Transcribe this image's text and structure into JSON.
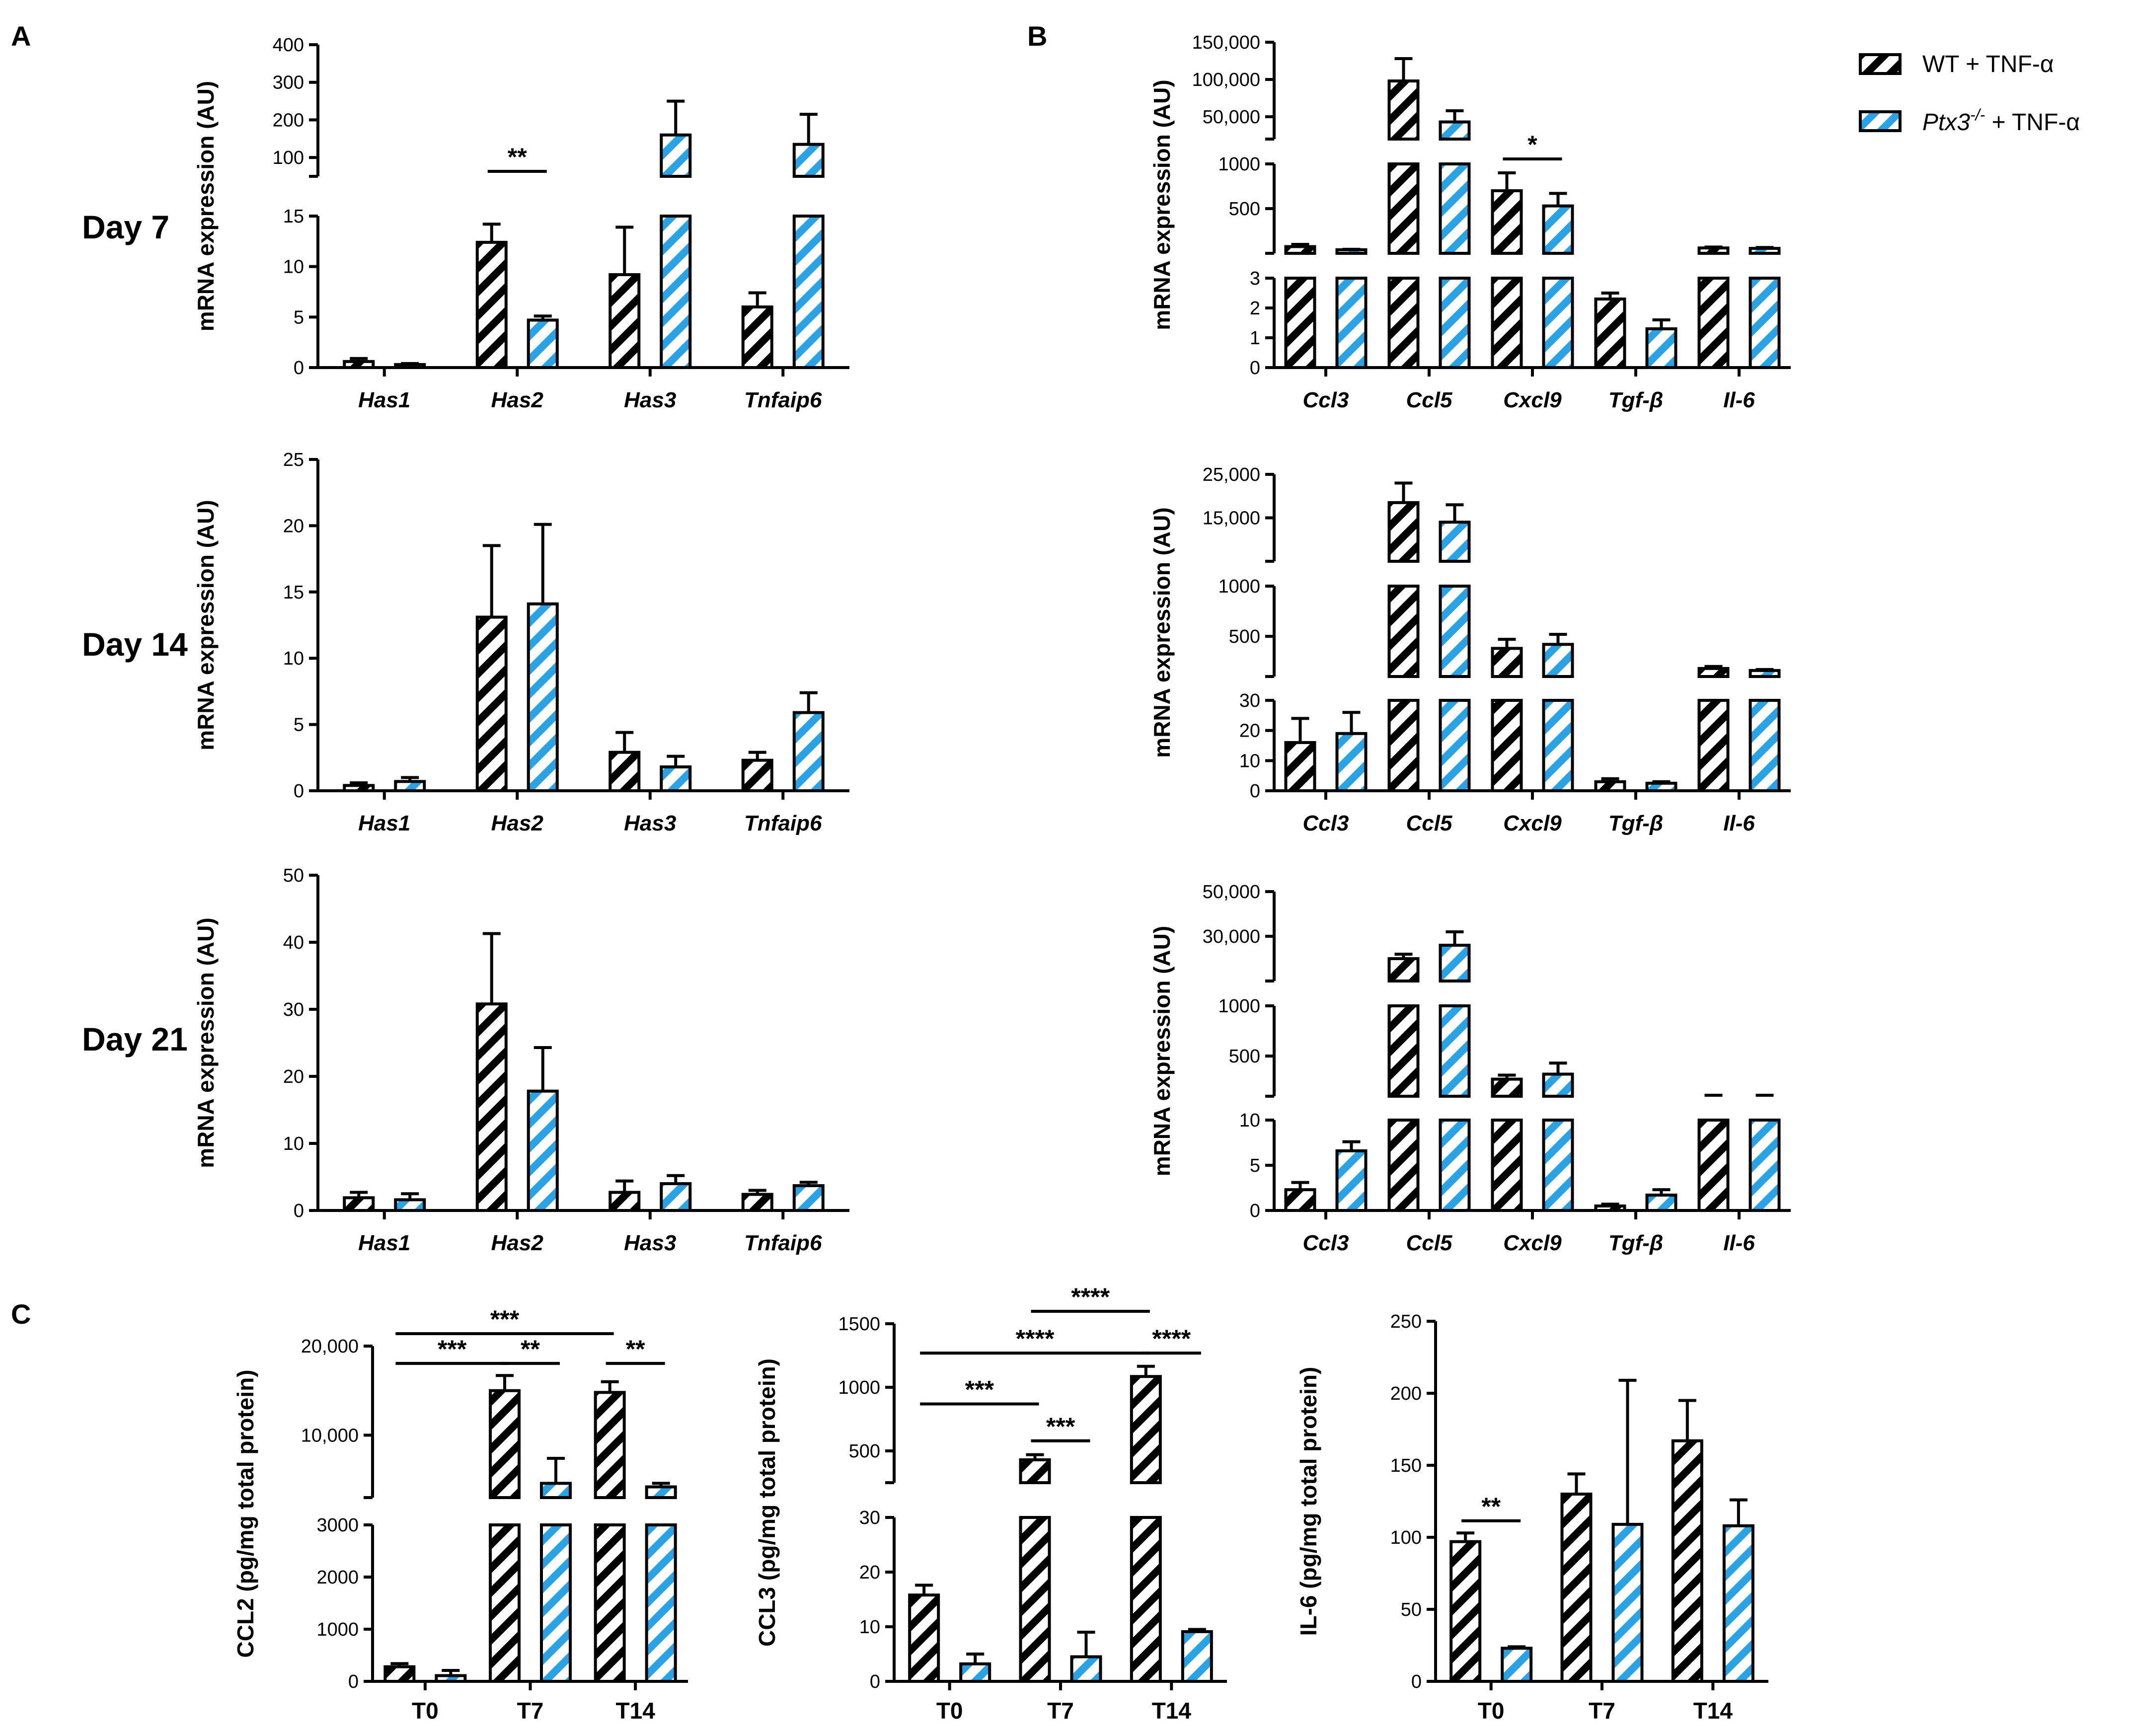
{
  "figure": {
    "panel_labels": [
      "A",
      "B",
      "C"
    ],
    "day_labels": [
      "Day 7",
      "Day 14",
      "Day 21"
    ],
    "legend": [
      {
        "label": "WT + TNF-α",
        "series": "WT"
      },
      {
        "label_italic": "Ptx3",
        "label_sup": "-/-",
        "label_rest": " + TNF-α",
        "series": "Ptx3"
      }
    ],
    "colors": {
      "wt": "#000000",
      "ptx3": "#29a3e6"
    }
  },
  "chart_data": [
    {
      "id": "A-day7",
      "type": "bar",
      "panel": "A",
      "day": "Day 7",
      "ylabel": "mRNA expression (AU)",
      "categories": [
        "Has1",
        "Has2",
        "Has3",
        "Tnfaip6"
      ],
      "italic_categories": true,
      "segments": [
        {
          "range": [
            0,
            15
          ],
          "ticks": [
            0,
            5,
            10,
            15
          ],
          "tick_labels": [
            "0",
            "5",
            "10",
            "15"
          ]
        },
        {
          "range": [
            50,
            400
          ],
          "ticks": [
            100,
            200,
            300,
            400
          ],
          "tick_labels": [
            "100",
            "200",
            "300",
            "400"
          ]
        }
      ],
      "series": [
        {
          "name": "WT + TNF-α",
          "values": [
            0.6,
            12.4,
            9.2,
            6.0
          ],
          "errors": [
            0.3,
            1.8,
            4.7,
            1.4
          ]
        },
        {
          "name": "Ptx3-/- + TNF-α",
          "values": [
            0.3,
            4.7,
            160,
            135
          ],
          "errors": [
            0.1,
            0.4,
            90,
            80
          ]
        }
      ],
      "annotations": [
        {
          "text": "**",
          "from": [
            1,
            0
          ],
          "to": [
            1,
            1
          ],
          "level": 17
        }
      ]
    },
    {
      "id": "B-day7",
      "type": "bar",
      "panel": "B",
      "day": "Day 7",
      "ylabel": "mRNA expression (AU)",
      "categories": [
        "Ccl3",
        "Ccl5",
        "Cxcl9",
        "Tgf-β",
        "Il-6"
      ],
      "italic_categories": true,
      "segments": [
        {
          "range": [
            0,
            3
          ],
          "ticks": [
            0,
            1,
            2,
            3
          ],
          "tick_labels": [
            "0",
            "1",
            "2",
            "3"
          ]
        },
        {
          "range": [
            0,
            1000
          ],
          "ticks": [
            500,
            1000
          ],
          "tick_labels": [
            "500",
            "1000"
          ]
        },
        {
          "range": [
            20000,
            150000
          ],
          "ticks": [
            50000,
            100000,
            150000
          ],
          "tick_labels": [
            "50,000",
            "100,000",
            "150,000"
          ]
        }
      ],
      "series": [
        {
          "name": "WT + TNF-α",
          "values": [
            75,
            98000,
            700,
            2.3,
            60
          ],
          "errors": [
            25,
            30000,
            200,
            0.2,
            10
          ]
        },
        {
          "name": "Ptx3-/- + TNF-α",
          "values": [
            40,
            43000,
            530,
            1.3,
            55
          ],
          "errors": [
            5,
            15000,
            140,
            0.3,
            10
          ]
        }
      ],
      "annotations": [
        {
          "text": "*",
          "from": [
            2,
            0
          ],
          "to": [
            2,
            1
          ],
          "level": 1000
        }
      ]
    },
    {
      "id": "A-day14",
      "type": "bar",
      "panel": "A",
      "day": "Day 14",
      "ylabel": "mRNA expression (AU)",
      "categories": [
        "Has1",
        "Has2",
        "Has3",
        "Tnfaip6"
      ],
      "italic_categories": true,
      "segments": [
        {
          "range": [
            0,
            25
          ],
          "ticks": [
            0,
            5,
            10,
            15,
            20,
            25
          ],
          "tick_labels": [
            "0",
            "5",
            "10",
            "15",
            "20",
            "25"
          ]
        }
      ],
      "series": [
        {
          "name": "WT + TNF-α",
          "values": [
            0.4,
            13.1,
            2.9,
            2.3
          ],
          "errors": [
            0.2,
            5.4,
            1.5,
            0.6
          ]
        },
        {
          "name": "Ptx3-/- + TNF-α",
          "values": [
            0.7,
            14.1,
            1.8,
            5.9
          ],
          "errors": [
            0.3,
            6.0,
            0.8,
            1.5
          ]
        }
      ],
      "annotations": []
    },
    {
      "id": "B-day14",
      "type": "bar",
      "panel": "B",
      "day": "Day 14",
      "ylabel": "mRNA expression (AU)",
      "categories": [
        "Ccl3",
        "Ccl5",
        "Cxcl9",
        "Tgf-β",
        "Il-6"
      ],
      "italic_categories": true,
      "segments": [
        {
          "range": [
            0,
            30
          ],
          "ticks": [
            0,
            10,
            20,
            30
          ],
          "tick_labels": [
            "0",
            "10",
            "20",
            "30"
          ]
        },
        {
          "range": [
            100,
            1000
          ],
          "ticks": [
            500,
            1000
          ],
          "tick_labels": [
            "500",
            "1000"
          ]
        },
        {
          "range": [
            5000,
            25000
          ],
          "ticks": [
            15000,
            25000
          ],
          "tick_labels": [
            "15,000",
            "25,000"
          ]
        }
      ],
      "series": [
        {
          "name": "WT + TNF-α",
          "values": [
            16,
            18500,
            380,
            3.0,
            180
          ],
          "errors": [
            8,
            4500,
            90,
            1.0,
            20
          ]
        },
        {
          "name": "Ptx3-/- + TNF-α",
          "values": [
            19,
            14000,
            420,
            2.5,
            160
          ],
          "errors": [
            7,
            4000,
            100,
            0.5,
            10
          ]
        }
      ],
      "annotations": []
    },
    {
      "id": "A-day21",
      "type": "bar",
      "panel": "A",
      "day": "Day 21",
      "ylabel": "mRNA expression (AU)",
      "categories": [
        "Has1",
        "Has2",
        "Has3",
        "Tnfaip6"
      ],
      "italic_categories": true,
      "segments": [
        {
          "range": [
            0,
            50
          ],
          "ticks": [
            0,
            10,
            20,
            30,
            40,
            50
          ],
          "tick_labels": [
            "0",
            "10",
            "20",
            "30",
            "40",
            "50"
          ]
        }
      ],
      "series": [
        {
          "name": "WT + TNF-α",
          "values": [
            1.9,
            30.8,
            2.7,
            2.4
          ],
          "errors": [
            0.8,
            10.5,
            1.7,
            0.6
          ]
        },
        {
          "name": "Ptx3-/- + TNF-α",
          "values": [
            1.6,
            17.8,
            4.0,
            3.7
          ],
          "errors": [
            0.9,
            6.5,
            1.2,
            0.5
          ]
        }
      ],
      "annotations": []
    },
    {
      "id": "B-day21",
      "type": "bar",
      "panel": "B",
      "day": "Day 21",
      "ylabel": "mRNA expression (AU)",
      "categories": [
        "Ccl3",
        "Ccl5",
        "Cxcl9",
        "Tgf-β",
        "Il-6"
      ],
      "italic_categories": true,
      "segments": [
        {
          "range": [
            0,
            10
          ],
          "ticks": [
            0,
            5,
            10
          ],
          "tick_labels": [
            "0",
            "5",
            "10"
          ]
        },
        {
          "range": [
            100,
            1000
          ],
          "ticks": [
            500,
            1000
          ],
          "tick_labels": [
            "500",
            "1000"
          ]
        },
        {
          "range": [
            10000,
            50000
          ],
          "ticks": [
            30000,
            50000
          ],
          "tick_labels": [
            "30,000",
            "50,000"
          ]
        }
      ],
      "series": [
        {
          "name": "WT + TNF-α",
          "values": [
            2.3,
            20000,
            270,
            0.5,
            100
          ],
          "errors": [
            0.8,
            2000,
            40,
            0.2,
            10
          ]
        },
        {
          "name": "Ptx3-/- + TNF-α",
          "values": [
            6.6,
            26000,
            320,
            1.7,
            100
          ],
          "errors": [
            1.0,
            6000,
            110,
            0.6,
            10
          ]
        }
      ],
      "annotations": []
    },
    {
      "id": "C-ccl2",
      "type": "bar",
      "panel": "C",
      "ylabel": "CCL2 (pg/mg total protein)",
      "categories": [
        "T0",
        "T7",
        "T14"
      ],
      "italic_categories": false,
      "segments": [
        {
          "range": [
            0,
            3000
          ],
          "ticks": [
            0,
            1000,
            2000,
            3000
          ],
          "tick_labels": [
            "0",
            "1000",
            "2000",
            "3000"
          ]
        },
        {
          "range": [
            3000,
            20000
          ],
          "ticks": [
            10000,
            20000
          ],
          "tick_labels": [
            "10,000",
            "20,000"
          ]
        }
      ],
      "series": [
        {
          "name": "WT + TNF-α",
          "values": [
            280,
            15000,
            14800
          ],
          "errors": [
            60,
            1700,
            1200
          ]
        },
        {
          "name": "Ptx3-/- + TNF-α",
          "values": [
            110,
            4600,
            4200
          ],
          "errors": [
            100,
            2800,
            400
          ]
        }
      ],
      "annotations": [
        {
          "text": "***",
          "from": [
            0,
            0
          ],
          "to": [
            1,
            0
          ],
          "level": 17500
        },
        {
          "text": "**",
          "from": [
            1,
            0
          ],
          "to": [
            1,
            1
          ],
          "level": 17500
        },
        {
          "text": "**",
          "from": [
            2,
            0
          ],
          "to": [
            2,
            1
          ],
          "level": 17500
        },
        {
          "text": "***",
          "from": [
            0,
            0
          ],
          "to": [
            2,
            0
          ],
          "level": 20800
        }
      ]
    },
    {
      "id": "C-ccl3",
      "type": "bar",
      "panel": "C",
      "ylabel": "CCL3 (pg/mg total protein)",
      "categories": [
        "T0",
        "T7",
        "T14"
      ],
      "italic_categories": false,
      "segments": [
        {
          "range": [
            0,
            30
          ],
          "ticks": [
            0,
            10,
            20,
            30
          ],
          "tick_labels": [
            "0",
            "10",
            "20",
            "30"
          ]
        },
        {
          "range": [
            250,
            1500
          ],
          "ticks": [
            500,
            1000,
            1500
          ],
          "tick_labels": [
            "500",
            "1000",
            "1500"
          ]
        }
      ],
      "series": [
        {
          "name": "WT + TNF-α",
          "values": [
            15.8,
            430,
            1085
          ],
          "errors": [
            1.8,
            40,
            80
          ]
        },
        {
          "name": "Ptx3-/- + TNF-α",
          "values": [
            3.2,
            4.5,
            9.1
          ],
          "errors": [
            1.8,
            4.5,
            0.4
          ]
        }
      ],
      "annotations": [
        {
          "text": "***",
          "from": [
            0,
            0
          ],
          "to": [
            1,
            0
          ],
          "level": 830
        },
        {
          "text": "***",
          "from": [
            1,
            0
          ],
          "to": [
            1,
            1
          ],
          "level": 540
        },
        {
          "text": "****",
          "from": [
            0,
            0
          ],
          "to": [
            2,
            0
          ],
          "level": 1230
        },
        {
          "text": "****",
          "from": [
            2,
            0
          ],
          "to": [
            2,
            1
          ],
          "level": 1230
        },
        {
          "text": "****",
          "from": [
            1,
            0
          ],
          "to": [
            2,
            0
          ],
          "level": 1660
        }
      ]
    },
    {
      "id": "C-il6",
      "type": "bar",
      "panel": "C",
      "ylabel": "IL-6 (pg/mg total protein)",
      "categories": [
        "T0",
        "T7",
        "T14"
      ],
      "italic_categories": false,
      "segments": [
        {
          "range": [
            0,
            250
          ],
          "ticks": [
            0,
            50,
            100,
            150,
            200,
            250
          ],
          "tick_labels": [
            "0",
            "50",
            "100",
            "150",
            "200",
            "250"
          ]
        }
      ],
      "series": [
        {
          "name": "WT + TNF-α",
          "values": [
            97,
            130,
            167
          ],
          "errors": [
            6,
            14,
            28
          ]
        },
        {
          "name": "Ptx3-/- + TNF-α",
          "values": [
            23,
            109,
            108
          ],
          "errors": [
            1,
            100,
            18
          ]
        }
      ],
      "annotations": [
        {
          "text": "**",
          "from": [
            0,
            0
          ],
          "to": [
            0,
            1
          ],
          "level": 108
        }
      ]
    }
  ]
}
